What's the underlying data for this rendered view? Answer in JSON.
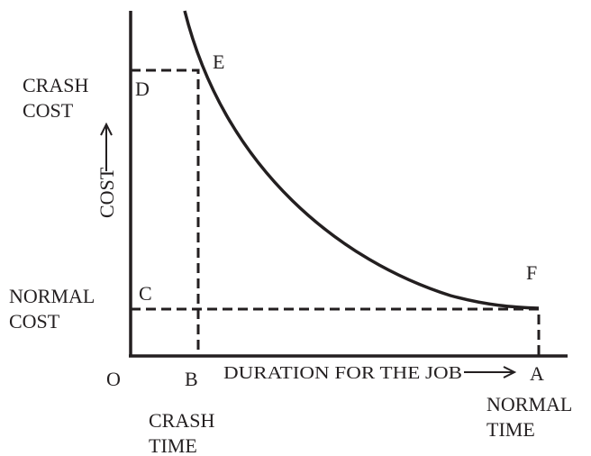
{
  "y_axis_label": "COST",
  "x_axis_label": "DURATION FOR THE JOB",
  "points": {
    "O": "O",
    "B": "B",
    "A": "A",
    "C": "C",
    "D": "D",
    "E": "E",
    "F": "F"
  },
  "crash_cost": [
    "CRASH",
    "COST"
  ],
  "normal_cost": [
    "NORMAL",
    "COST"
  ],
  "crash_time": [
    "CRASH",
    "TIME"
  ],
  "normal_time": [
    "NORMAL",
    "TIME"
  ]
}
